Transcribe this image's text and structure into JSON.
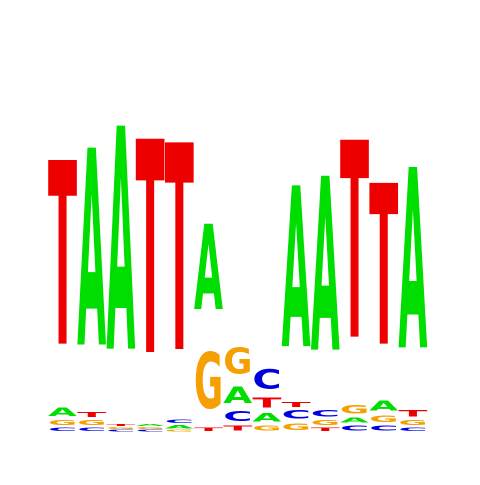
{
  "alphabet": [
    "A",
    "C",
    "G",
    "T"
  ],
  "colors": {
    "A": "#00dd00",
    "C": "#0000dd",
    "G": "#f5a000",
    "T": "#ee0000"
  },
  "logo": {
    "max_bits": 2,
    "positions": [
      {
        "index": 1,
        "letters": [
          {
            "base": "C",
            "bits": 0.02
          },
          {
            "base": "G",
            "bits": 0.03
          },
          {
            "base": "A",
            "bits": 0.05
          },
          {
            "base": "T",
            "bits": 1.12
          }
        ]
      },
      {
        "index": 2,
        "letters": [
          {
            "base": "C",
            "bits": 0.02
          },
          {
            "base": "G",
            "bits": 0.03
          },
          {
            "base": "T",
            "bits": 0.03
          },
          {
            "base": "A",
            "bits": 1.2
          }
        ]
      },
      {
        "index": 3,
        "letters": [
          {
            "base": "C",
            "bits": 0.01
          },
          {
            "base": "G",
            "bits": 0.01
          },
          {
            "base": "T",
            "bits": 0.01
          },
          {
            "base": "A",
            "bits": 1.36
          }
        ]
      },
      {
        "index": 4,
        "letters": [
          {
            "base": "C",
            "bits": 0.01
          },
          {
            "base": "G",
            "bits": 0.01
          },
          {
            "base": "A",
            "bits": 0.01
          },
          {
            "base": "T",
            "bits": 1.3
          }
        ]
      },
      {
        "index": 5,
        "letters": [
          {
            "base": "G",
            "bits": 0.01
          },
          {
            "base": "A",
            "bits": 0.02
          },
          {
            "base": "C",
            "bits": 0.02
          },
          {
            "base": "T",
            "bits": 1.26
          }
        ]
      },
      {
        "index": 6,
        "letters": [
          {
            "base": "T",
            "bits": 0.02
          },
          {
            "base": "G",
            "bits": 0.34
          },
          {
            "base": "A",
            "bits": 0.52
          }
        ]
      },
      {
        "index": 7,
        "letters": [
          {
            "base": "T",
            "bits": 0.03
          },
          {
            "base": "C",
            "bits": 0.06
          },
          {
            "base": "A",
            "bits": 0.1
          },
          {
            "base": "G",
            "bits": 0.16
          }
        ]
      },
      {
        "index": 8,
        "letters": [
          {
            "base": "G",
            "bits": 0.03
          },
          {
            "base": "A",
            "bits": 0.05
          },
          {
            "base": "T",
            "bits": 0.06
          },
          {
            "base": "C",
            "bits": 0.12
          }
        ]
      },
      {
        "index": 9,
        "letters": [
          {
            "base": "G",
            "bits": 0.04
          },
          {
            "base": "C",
            "bits": 0.05
          },
          {
            "base": "T",
            "bits": 0.03
          },
          {
            "base": "A",
            "bits": 0.98
          }
        ]
      },
      {
        "index": 10,
        "letters": [
          {
            "base": "T",
            "bits": 0.02
          },
          {
            "base": "G",
            "bits": 0.03
          },
          {
            "base": "C",
            "bits": 0.04
          },
          {
            "base": "A",
            "bits": 1.06
          }
        ]
      },
      {
        "index": 11,
        "letters": [
          {
            "base": "C",
            "bits": 0.03
          },
          {
            "base": "A",
            "bits": 0.03
          },
          {
            "base": "G",
            "bits": 0.05
          },
          {
            "base": "T",
            "bits": 1.2
          }
        ]
      },
      {
        "index": 12,
        "letters": [
          {
            "base": "C",
            "bits": 0.03
          },
          {
            "base": "G",
            "bits": 0.04
          },
          {
            "base": "A",
            "bits": 0.06
          },
          {
            "base": "T",
            "bits": 0.98
          }
        ]
      },
      {
        "index": 13,
        "letters": [
          {
            "base": "C",
            "bits": 0.02
          },
          {
            "base": "G",
            "bits": 0.03
          },
          {
            "base": "T",
            "bits": 0.04
          },
          {
            "base": "A",
            "bits": 1.1
          }
        ]
      }
    ]
  }
}
